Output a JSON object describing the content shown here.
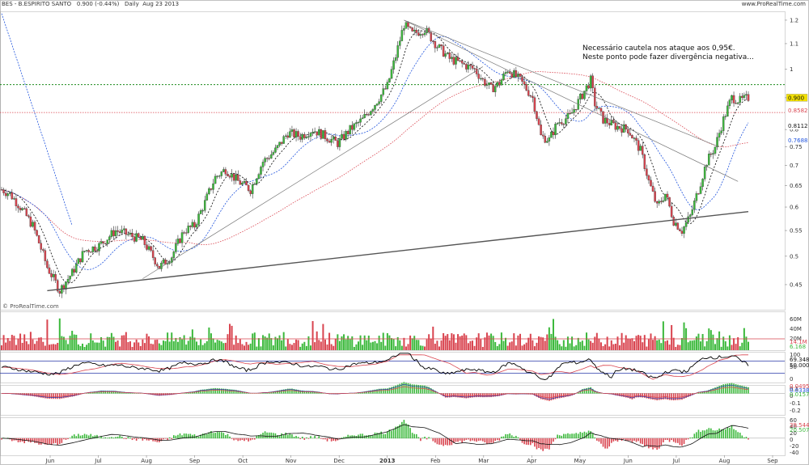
{
  "header": {
    "title": "BES - B.ESPIRITO SANTO",
    "last": "0.900 (-0.44%)",
    "period": "Daily",
    "date": "Aug 23 2013",
    "source": "www.ProRealTime.com"
  },
  "watermark": "© ProRealTime.com",
  "annotation": {
    "line1": "Necessário cautela nos ataque aos 0,95€.",
    "line2": "Neste ponto pode fazer divergência negativa..."
  },
  "colors": {
    "up": "#3cb93c",
    "down": "#d9444f",
    "resistance": "#1a8a1a",
    "support": "#d9444f",
    "ma_blue": "#2255dd",
    "ma_red": "#d9444f",
    "trend": "#555555",
    "rsi": "#000000"
  },
  "chart_data": {
    "type": "candlestick",
    "x_labels": [
      "Jun",
      "Jul",
      "Aug",
      "Sep",
      "Oct",
      "Nov",
      "Dec",
      "2013",
      "Feb",
      "Mar",
      "Apr",
      "May",
      "Jun",
      "Jul",
      "Aug",
      "Sep"
    ],
    "y_ticks": [
      "1.2",
      "1.1",
      "1",
      "0.9",
      "0.8",
      "0.75",
      "0.7",
      "0.65",
      "0.6",
      "0.55",
      "0.5",
      "0.45"
    ],
    "ylim": [
      0.41,
      1.24
    ],
    "price_path": [
      [
        0,
        0.64
      ],
      [
        4,
        0.63
      ],
      [
        9,
        0.6
      ],
      [
        15,
        0.56
      ],
      [
        22,
        0.48
      ],
      [
        28,
        0.44
      ],
      [
        34,
        0.47
      ],
      [
        40,
        0.51
      ],
      [
        47,
        0.52
      ],
      [
        55,
        0.55
      ],
      [
        62,
        0.54
      ],
      [
        68,
        0.53
      ],
      [
        76,
        0.48
      ],
      [
        82,
        0.5
      ],
      [
        88,
        0.55
      ],
      [
        93,
        0.56
      ],
      [
        98,
        0.61
      ],
      [
        103,
        0.67
      ],
      [
        108,
        0.69
      ],
      [
        114,
        0.66
      ],
      [
        120,
        0.64
      ],
      [
        126,
        0.71
      ],
      [
        132,
        0.74
      ],
      [
        138,
        0.79
      ],
      [
        144,
        0.78
      ],
      [
        150,
        0.8
      ],
      [
        156,
        0.78
      ],
      [
        162,
        0.76
      ],
      [
        168,
        0.8
      ],
      [
        174,
        0.83
      ],
      [
        180,
        0.88
      ],
      [
        186,
        0.94
      ],
      [
        190,
        1.05
      ],
      [
        194,
        1.18
      ],
      [
        198,
        1.14
      ],
      [
        204,
        1.16
      ],
      [
        210,
        1.09
      ],
      [
        216,
        1.04
      ],
      [
        222,
        1.02
      ],
      [
        228,
        1.0
      ],
      [
        232,
        0.96
      ],
      [
        236,
        0.93
      ],
      [
        240,
        0.95
      ],
      [
        244,
        1.0
      ],
      [
        250,
        0.96
      ],
      [
        256,
        0.9
      ],
      [
        260,
        0.78
      ],
      [
        264,
        0.77
      ],
      [
        268,
        0.82
      ],
      [
        274,
        0.84
      ],
      [
        280,
        0.91
      ],
      [
        284,
        0.96
      ],
      [
        286,
        0.88
      ],
      [
        290,
        0.83
      ],
      [
        296,
        0.81
      ],
      [
        302,
        0.8
      ],
      [
        308,
        0.74
      ],
      [
        312,
        0.66
      ],
      [
        316,
        0.6
      ],
      [
        320,
        0.63
      ],
      [
        324,
        0.57
      ],
      [
        328,
        0.55
      ],
      [
        332,
        0.58
      ],
      [
        336,
        0.64
      ],
      [
        340,
        0.71
      ],
      [
        344,
        0.75
      ],
      [
        348,
        0.83
      ],
      [
        352,
        0.9
      ],
      [
        356,
        0.89
      ],
      [
        360,
        0.9
      ]
    ],
    "x_extent": [
      0,
      360
    ],
    "resistance_level": 0.945,
    "support_level": 0.852,
    "price_tags": [
      {
        "label": "0.900",
        "value": 0.9,
        "type": "last"
      },
      {
        "label": "0.8582",
        "value": 0.8582,
        "type": "red"
      },
      {
        "label": "0.8112",
        "value": 0.8112,
        "type": "black"
      },
      {
        "label": "0.7688",
        "value": 0.7688,
        "type": "blue"
      }
    ],
    "trendlines": [
      {
        "from": [
          22,
          0.44
        ],
        "to": [
          360,
          0.59
        ]
      },
      {
        "from": [
          194,
          1.2
        ],
        "to": [
          346,
          0.75
        ]
      },
      {
        "from": [
          194,
          1.2
        ],
        "to": [
          355,
          0.66
        ]
      },
      {
        "from": [
          68,
          0.46
        ],
        "to": [
          232,
          1.01
        ]
      }
    ],
    "volume": {
      "ticks": [
        "60M",
        "40M",
        "20M"
      ],
      "readouts": [
        "14.1M",
        "6.168"
      ]
    },
    "rsi": {
      "ticks": [
        "100",
        "50",
        "0"
      ],
      "readouts": [
        "69.348",
        "50.000"
      ]
    },
    "macd": {
      "ticks": [
        "0.1",
        "0",
        "-0.1",
        "-0.2"
      ],
      "readouts": [
        "0.0495",
        "0.0338",
        "0.0157"
      ]
    },
    "histogram": {
      "ticks": [
        "60",
        "40",
        "20",
        "0",
        "-20",
        "-40"
      ],
      "readouts": [
        "39.544",
        "20.507"
      ]
    }
  }
}
